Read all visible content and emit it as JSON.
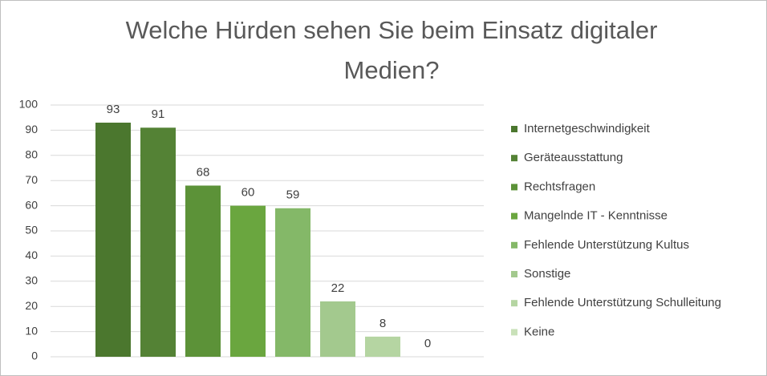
{
  "chart_data": {
    "type": "bar",
    "title": "Welche Hürden sehen Sie beim Einsatz digitaler Medien?",
    "categories": [
      "Internetgeschwindigkeit",
      "Geräteausstattung",
      "Rechtsfragen",
      "Mangelnde IT - Kenntnisse",
      "Fehlende Unterstützung Kultus",
      "Sonstige",
      "Fehlende Unterstützung Schulleitung",
      "Keine"
    ],
    "values": [
      93,
      91,
      68,
      60,
      59,
      22,
      8,
      0
    ],
    "colors": [
      "#4b772e",
      "#548235",
      "#5c9238",
      "#6aa63f",
      "#84b868",
      "#a3c98e",
      "#b5d5a2",
      "#c9e1b9"
    ],
    "ylim": [
      0,
      100
    ],
    "yticks": [
      0,
      10,
      20,
      30,
      40,
      50,
      60,
      70,
      80,
      90,
      100
    ],
    "grid": true,
    "legend": "right"
  }
}
